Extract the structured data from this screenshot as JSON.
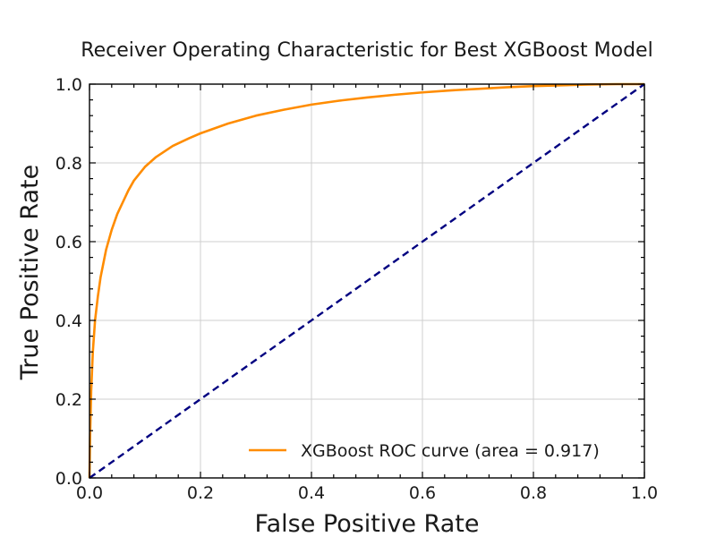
{
  "chart_data": {
    "type": "line",
    "title": "Receiver Operating Characteristic for Best XGBoost Model",
    "xlabel": "False Positive Rate",
    "ylabel": "True Positive Rate",
    "xlim": [
      0.0,
      1.0
    ],
    "ylim": [
      0.0,
      1.0
    ],
    "grid": true,
    "legend_position": "lower-right",
    "x_ticks": [
      "0.0",
      "0.2",
      "0.4",
      "0.6",
      "0.8",
      "1.0"
    ],
    "y_ticks": [
      "0.0",
      "0.2",
      "0.4",
      "0.6",
      "0.8",
      "1.0"
    ],
    "series": [
      {
        "name": "XGBoost ROC curve (area = 0.917)",
        "color": "#ff8c00",
        "style": "solid",
        "x": [
          0.0,
          0.001,
          0.003,
          0.006,
          0.01,
          0.015,
          0.02,
          0.03,
          0.04,
          0.05,
          0.06,
          0.07,
          0.08,
          0.1,
          0.12,
          0.15,
          0.18,
          0.2,
          0.25,
          0.3,
          0.35,
          0.4,
          0.45,
          0.5,
          0.55,
          0.6,
          0.65,
          0.7,
          0.75,
          0.8,
          0.85,
          0.9,
          0.95,
          1.0
        ],
        "y": [
          0.0,
          0.1,
          0.22,
          0.32,
          0.4,
          0.46,
          0.51,
          0.58,
          0.63,
          0.67,
          0.7,
          0.73,
          0.755,
          0.79,
          0.815,
          0.843,
          0.863,
          0.875,
          0.9,
          0.92,
          0.935,
          0.948,
          0.958,
          0.966,
          0.973,
          0.979,
          0.984,
          0.988,
          0.992,
          0.995,
          0.997,
          0.999,
          1.0,
          1.0
        ]
      },
      {
        "name": "",
        "color": "#000080",
        "style": "dashed",
        "x": [
          0.0,
          1.0
        ],
        "y": [
          0.0,
          1.0
        ]
      }
    ]
  }
}
